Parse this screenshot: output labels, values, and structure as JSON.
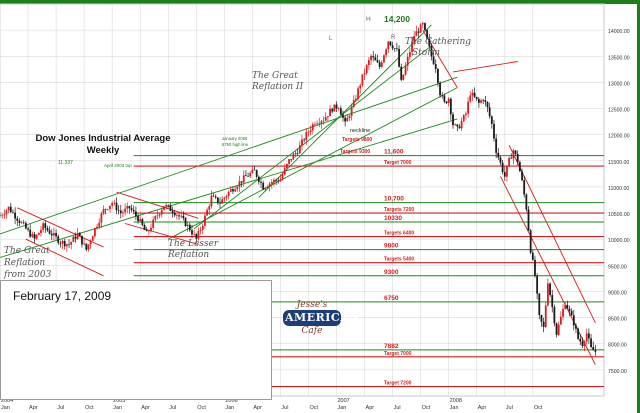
{
  "chart_data": {
    "type": "candlestick",
    "title": "Dow Jones Industrial Average Weekly",
    "title_lines": [
      "Dow Jones Industrial Average",
      "Weekly"
    ],
    "ylim": [
      7000,
      14500
    ],
    "y_ticks": [
      7500,
      8000,
      8500,
      9000,
      9500,
      10000,
      10500,
      11000,
      11500,
      12000,
      12500,
      13000,
      13500,
      14000
    ],
    "y_tick_labels": [
      "7500.00",
      "8000.00",
      "8500.00",
      "9000.00",
      "9500.00",
      "10000.00",
      "10500.00",
      "11000.00",
      "11500.00",
      "12000.00",
      "12500.00",
      "13000.00",
      "13500.00",
      "14000.00"
    ],
    "x_year_labels": [
      {
        "label": "2004",
        "t": 0
      },
      {
        "label": "2005",
        "t": 52
      },
      {
        "label": "2006",
        "t": 104
      },
      {
        "label": "2007",
        "t": 156
      },
      {
        "label": "2008",
        "t": 208
      }
    ],
    "x_month_labels": [
      {
        "label": "Jan",
        "t": 0
      },
      {
        "label": "Apr",
        "t": 13
      },
      {
        "label": "Jul",
        "t": 26
      },
      {
        "label": "Oct",
        "t": 39
      },
      {
        "label": "Jan",
        "t": 52
      },
      {
        "label": "Apr",
        "t": 65
      },
      {
        "label": "Jul",
        "t": 78
      },
      {
        "label": "Oct",
        "t": 91
      },
      {
        "label": "Jan",
        "t": 104
      },
      {
        "label": "Apr",
        "t": 117
      },
      {
        "label": "Jul",
        "t": 130
      },
      {
        "label": "Oct",
        "t": 143
      },
      {
        "label": "Jan",
        "t": 156
      },
      {
        "label": "Apr",
        "t": 169
      },
      {
        "label": "Jul",
        "t": 182
      },
      {
        "label": "Oct",
        "t": 195
      },
      {
        "label": "Jan",
        "t": 208
      },
      {
        "label": "Apr",
        "t": 221
      },
      {
        "label": "Jul",
        "t": 234
      },
      {
        "label": "Oct",
        "t": 247
      }
    ],
    "close_path": [
      [
        0,
        10450
      ],
      [
        4,
        10600
      ],
      [
        8,
        10400
      ],
      [
        12,
        10200
      ],
      [
        16,
        10000
      ],
      [
        20,
        10250
      ],
      [
        24,
        10100
      ],
      [
        28,
        9950
      ],
      [
        32,
        9900
      ],
      [
        36,
        10100
      ],
      [
        40,
        9800
      ],
      [
        44,
        10200
      ],
      [
        48,
        10550
      ],
      [
        52,
        10700
      ],
      [
        56,
        10500
      ],
      [
        60,
        10600
      ],
      [
        64,
        10400
      ],
      [
        68,
        10100
      ],
      [
        72,
        10400
      ],
      [
        76,
        10650
      ],
      [
        80,
        10550
      ],
      [
        84,
        10400
      ],
      [
        88,
        10200
      ],
      [
        91,
        10000
      ],
      [
        94,
        10300
      ],
      [
        98,
        10800
      ],
      [
        102,
        10700
      ],
      [
        106,
        10900
      ],
      [
        110,
        11050
      ],
      [
        114,
        11200
      ],
      [
        118,
        11300
      ],
      [
        122,
        11000
      ],
      [
        126,
        11100
      ],
      [
        130,
        11150
      ],
      [
        134,
        11500
      ],
      [
        138,
        11700
      ],
      [
        142,
        12000
      ],
      [
        146,
        12250
      ],
      [
        150,
        12300
      ],
      [
        154,
        12500
      ],
      [
        157,
        12550
      ],
      [
        160,
        12200
      ],
      [
        164,
        12600
      ],
      [
        168,
        13100
      ],
      [
        172,
        13500
      ],
      [
        176,
        13300
      ],
      [
        180,
        13800
      ],
      [
        184,
        13600
      ],
      [
        186,
        13000
      ],
      [
        188,
        13300
      ],
      [
        192,
        13900
      ],
      [
        196,
        14100
      ],
      [
        198,
        13800
      ],
      [
        200,
        13500
      ],
      [
        202,
        13300
      ],
      [
        204,
        12800
      ],
      [
        206,
        12600
      ],
      [
        208,
        12700
      ],
      [
        210,
        12200
      ],
      [
        212,
        12100
      ],
      [
        216,
        12400
      ],
      [
        218,
        12800
      ],
      [
        220,
        12700
      ],
      [
        222,
        12600
      ],
      [
        224,
        12700
      ],
      [
        226,
        12500
      ],
      [
        228,
        12200
      ],
      [
        230,
        11700
      ],
      [
        232,
        11450
      ],
      [
        234,
        11200
      ],
      [
        236,
        11500
      ],
      [
        238,
        11700
      ],
      [
        240,
        11500
      ],
      [
        242,
        11100
      ],
      [
        244,
        10600
      ],
      [
        246,
        9800
      ],
      [
        248,
        9300
      ],
      [
        250,
        8500
      ],
      [
        252,
        8300
      ],
      [
        254,
        9200
      ],
      [
        256,
        8700
      ],
      [
        258,
        8200
      ],
      [
        260,
        8500
      ],
      [
        262,
        8800
      ],
      [
        264,
        8600
      ],
      [
        266,
        8400
      ],
      [
        268,
        8100
      ],
      [
        270,
        8000
      ],
      [
        272,
        8200
      ],
      [
        274,
        7900
      ],
      [
        276,
        7850
      ]
    ],
    "levels": [
      {
        "label": "11,600",
        "value": 11600
      },
      {
        "label": "Target 7000",
        "value": 11400
      },
      {
        "label": "10,700",
        "value": 10700
      },
      {
        "label": "Targets 7200",
        "value": 10500
      },
      {
        "label": "10330",
        "value": 10330
      },
      {
        "label": "Targets 6400",
        "value": 10050
      },
      {
        "label": "9800",
        "value": 9800
      },
      {
        "label": "Targets 5400",
        "value": 9550
      },
      {
        "label": "9300",
        "value": 9300
      },
      {
        "label": "6750",
        "value": 8800
      },
      {
        "label": "7882",
        "value": 7882
      },
      {
        "label": "Target 7000",
        "value": 7750
      },
      {
        "label": "Target 7200",
        "value": 7180
      }
    ],
    "annotations": [
      {
        "text": "14,200",
        "kind": "peak"
      },
      {
        "text": "11,337",
        "kind": "level"
      },
      {
        "text": "April 2003 top",
        "kind": "level"
      },
      {
        "text": "January 2006",
        "kind": "note"
      },
      {
        "text": "6750 high line",
        "kind": "note"
      },
      {
        "text": "neckline",
        "kind": "pattern"
      },
      {
        "text": "Targets 9800",
        "kind": "target"
      },
      {
        "text": "Targets 9300",
        "kind": "target"
      },
      {
        "text": "L",
        "kind": "pattern"
      },
      {
        "text": "H",
        "kind": "pattern"
      },
      {
        "text": "R",
        "kind": "pattern"
      }
    ],
    "phase_labels": {
      "great_reflation_2003": [
        "The Great",
        "Reflation",
        "from 2003"
      ],
      "lesser_reflation": [
        "The Lesser",
        "Reflation"
      ],
      "great_reflation_ii": [
        "The Great",
        "Reflation II"
      ],
      "gathering_storm": [
        "The Gathering",
        "Storm"
      ]
    },
    "grid": true
  },
  "date_label": "February 17, 2009",
  "logo": {
    "line1": "Jesse's",
    "line2": "AMERICAN",
    "line3": "Cafe"
  },
  "colors": {
    "bull_candle": "#d21f1f",
    "bear_candle": "#1a1a1a",
    "green_lines": "#1b8a1b",
    "red_lines": "#d51c1c",
    "accent_green": "#1e7d1e",
    "grid": "#d9d9d9"
  }
}
